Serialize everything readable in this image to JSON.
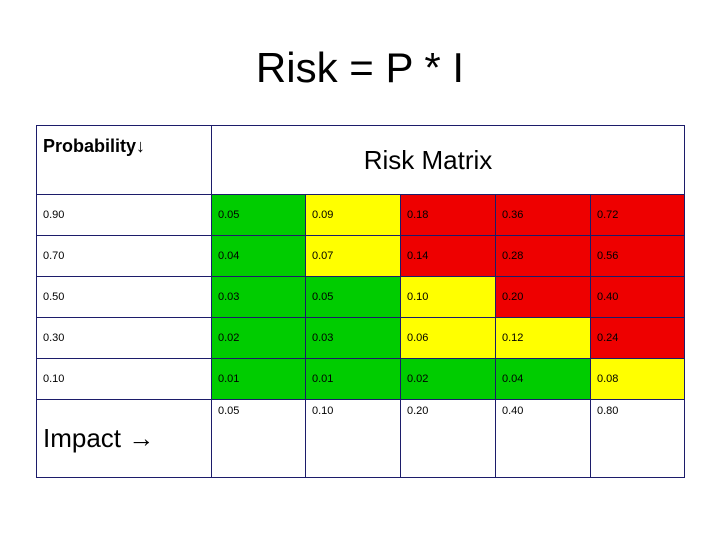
{
  "title": "Risk = P * I",
  "header": {
    "probability_label": "Probability↓",
    "matrix_title": "Risk Matrix"
  },
  "colors": {
    "green": "#00cc00",
    "yellow": "#ffff00",
    "red": "#ee0000"
  },
  "rows": [
    {
      "probability": "0.90",
      "cells": [
        {
          "value": "0.05",
          "color": "green"
        },
        {
          "value": "0.09",
          "color": "yellow"
        },
        {
          "value": "0.18",
          "color": "red"
        },
        {
          "value": "0.36",
          "color": "red"
        },
        {
          "value": "0.72",
          "color": "red"
        }
      ]
    },
    {
      "probability": "0.70",
      "cells": [
        {
          "value": "0.04",
          "color": "green"
        },
        {
          "value": "0.07",
          "color": "yellow"
        },
        {
          "value": "0.14",
          "color": "red"
        },
        {
          "value": "0.28",
          "color": "red"
        },
        {
          "value": "0.56",
          "color": "red"
        }
      ]
    },
    {
      "probability": "0.50",
      "cells": [
        {
          "value": "0.03",
          "color": "green"
        },
        {
          "value": "0.05",
          "color": "green"
        },
        {
          "value": "0.10",
          "color": "yellow"
        },
        {
          "value": "0.20",
          "color": "red"
        },
        {
          "value": "0.40",
          "color": "red"
        }
      ]
    },
    {
      "probability": "0.30",
      "cells": [
        {
          "value": "0.02",
          "color": "green"
        },
        {
          "value": "0.03",
          "color": "green"
        },
        {
          "value": "0.06",
          "color": "yellow"
        },
        {
          "value": "0.12",
          "color": "yellow"
        },
        {
          "value": "0.24",
          "color": "red"
        }
      ]
    },
    {
      "probability": "0.10",
      "cells": [
        {
          "value": "0.01",
          "color": "green"
        },
        {
          "value": "0.01",
          "color": "green"
        },
        {
          "value": "0.02",
          "color": "green"
        },
        {
          "value": "0.04",
          "color": "green"
        },
        {
          "value": "0.08",
          "color": "yellow"
        }
      ]
    }
  ],
  "impact": {
    "label": "Impact  →",
    "values": [
      "0.05",
      "0.10",
      "0.20",
      "0.40",
      "0.80"
    ]
  }
}
